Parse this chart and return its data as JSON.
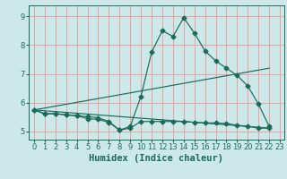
{
  "xlabel": "Humidex (Indice chaleur)",
  "background_color": "#cce8e8",
  "grid_color": "#e8a0a0",
  "line_color": "#1a6b5a",
  "xlim_min": -0.5,
  "xlim_max": 23.4,
  "ylim_min": 4.72,
  "ylim_max": 9.38,
  "yticks": [
    5,
    6,
    7,
    8,
    9
  ],
  "xtick_labels": [
    "0",
    "1",
    "2",
    "3",
    "4",
    "5",
    "6",
    "7",
    "8",
    "9",
    "10",
    "11",
    "12",
    "13",
    "14",
    "15",
    "16",
    "17",
    "18",
    "19",
    "20",
    "21",
    "22",
    "23"
  ],
  "xtick_positions": [
    0,
    1,
    2,
    3,
    4,
    5,
    6,
    7,
    8,
    9,
    10,
    11,
    12,
    13,
    14,
    15,
    16,
    17,
    18,
    19,
    20,
    21,
    22,
    23
  ],
  "series1_x": [
    0,
    1,
    2,
    3,
    4,
    5,
    6,
    7,
    8,
    9,
    10,
    11,
    12,
    13,
    14,
    15,
    16,
    17,
    18,
    19,
    20,
    21,
    22
  ],
  "series1_y": [
    5.75,
    5.62,
    5.62,
    5.58,
    5.55,
    5.52,
    5.48,
    5.35,
    5.05,
    5.18,
    6.22,
    7.75,
    8.5,
    8.3,
    8.95,
    8.42,
    7.8,
    7.45,
    7.2,
    6.95,
    6.58,
    5.95,
    5.18
  ],
  "series2_x": [
    0,
    1,
    2,
    3,
    4,
    5,
    6,
    7,
    8,
    9,
    10,
    11,
    12,
    13,
    14,
    15,
    16,
    17,
    18,
    19,
    20,
    21,
    22
  ],
  "series2_y": [
    5.75,
    5.62,
    5.62,
    5.58,
    5.55,
    5.45,
    5.42,
    5.32,
    5.05,
    5.12,
    5.35,
    5.35,
    5.35,
    5.35,
    5.35,
    5.32,
    5.3,
    5.3,
    5.28,
    5.22,
    5.18,
    5.12,
    5.12
  ],
  "series3_x": [
    0,
    22
  ],
  "series3_y": [
    5.75,
    7.2
  ],
  "series4_x": [
    0,
    22
  ],
  "series4_y": [
    5.75,
    5.12
  ],
  "marker_size": 2.5,
  "linewidth": 0.85,
  "xlabel_fontsize": 7.5,
  "tick_fontsize": 6.0
}
